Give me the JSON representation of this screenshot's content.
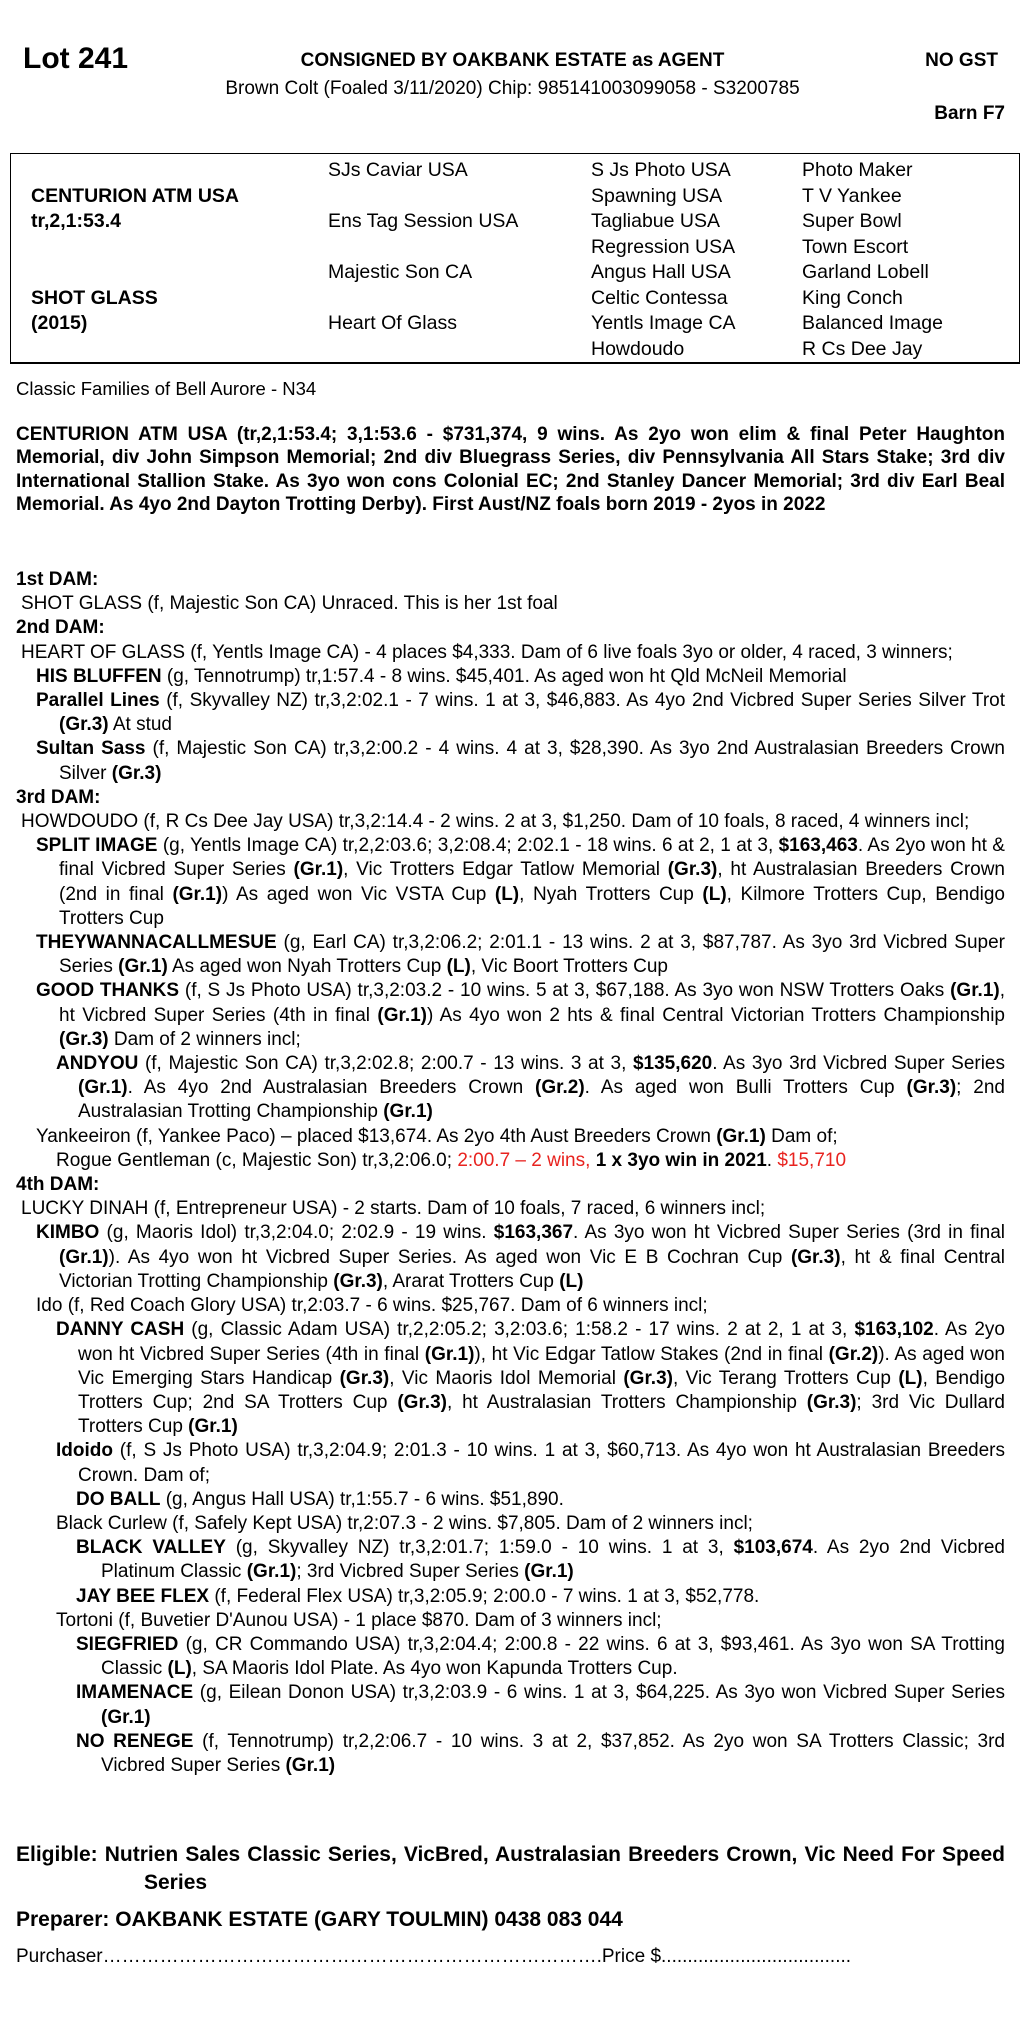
{
  "header": {
    "lot": "Lot 241",
    "consigned": "CONSIGNED BY OAKBANK ESTATE as AGENT",
    "gst": "NO GST",
    "description": "Brown Colt (Foaled 3/11/2020) Chip: 985141003099058 - S3200785",
    "barn": "Barn F7"
  },
  "pedigree": {
    "col1": [
      [
        "",
        ""
      ],
      [
        "CENTURION ATM USA",
        "b"
      ],
      [
        "tr,2,1:53.4",
        "b"
      ],
      [
        "",
        ""
      ],
      [
        "",
        ""
      ],
      [
        "SHOT GLASS",
        "b"
      ],
      [
        "(2015)",
        "b"
      ],
      [
        "",
        ""
      ]
    ],
    "col2": [
      "SJs Caviar USA",
      "",
      "Ens Tag Session USA",
      "",
      "Majestic Son CA",
      "",
      "Heart Of Glass",
      ""
    ],
    "col3": [
      "S Js Photo USA",
      "Spawning USA",
      "Tagliabue USA",
      "Regression USA",
      "Angus Hall USA",
      "Celtic Contessa",
      "Yentls Image CA",
      "Howdoudo"
    ],
    "col4": [
      "Photo Maker",
      "T V Yankee",
      "Super Bowl",
      "Town Escort",
      "Garland Lobell",
      "King Conch",
      "Balanced Image",
      "R Cs Dee Jay"
    ]
  },
  "family": "Classic Families of Bell Aurore - N34",
  "sire_note": "CENTURION ATM USA (tr,2,1:53.4; 3,1:53.6 - $731,374, 9 wins. As 2yo won elim & final Peter Haughton Memorial, div John Simpson Memorial; 2nd div Bluegrass Series, div Pennsylvania All Stars Stake; 3rd div International Stallion Stake. As 3yo won cons Colonial EC; 2nd Stanley Dancer Memorial; 3rd div Earl Beal Memorial. As 4yo 2nd Dayton Trotting Derby). First Aust/NZ foals born 2019 - 2yos in 2022",
  "dams": [
    {
      "heading": "1st DAM:",
      "entries": [
        {
          "level": 0,
          "seg": [
            [
              "SHOT GLASS (f, Majestic Son CA) Unraced. This is her 1st foal",
              ""
            ]
          ]
        }
      ]
    },
    {
      "heading": "2nd DAM:",
      "entries": [
        {
          "level": 0,
          "seg": [
            [
              "HEART OF GLASS (f, Yentls Image CA) - 4 places $4,333. Dam of 6 live foals 3yo or older, 4 raced, 3 winners;",
              ""
            ]
          ]
        },
        {
          "level": 1,
          "seg": [
            [
              "HIS BLUFFEN",
              "b"
            ],
            [
              " (g, Tennotrump) tr,1:57.4 - 8 wins. $45,401. As aged won ht Qld McNeil Memorial",
              ""
            ]
          ]
        },
        {
          "level": 1,
          "seg": [
            [
              "Parallel Lines",
              "b"
            ],
            [
              " (f, Skyvalley NZ) tr,3,2:02.1 - 7 wins. 1 at 3, $46,883. As 4yo 2nd Vicbred Super Series Silver Trot ",
              ""
            ],
            [
              "(Gr.3)",
              "b"
            ],
            [
              " At stud",
              ""
            ]
          ]
        },
        {
          "level": 1,
          "seg": [
            [
              "Sultan Sass",
              "b"
            ],
            [
              " (f, Majestic Son CA) tr,3,2:00.2 - 4 wins. 4 at 3, $28,390. As 3yo 2nd Australasian Breeders Crown Silver ",
              ""
            ],
            [
              "(Gr.3)",
              "b"
            ]
          ]
        }
      ]
    },
    {
      "heading": "3rd DAM:",
      "entries": [
        {
          "level": 0,
          "seg": [
            [
              "HOWDOUDO (f, R Cs Dee Jay USA) tr,3,2:14.4 - 2 wins. 2 at 3, $1,250. Dam of 10 foals, 8 raced, 4 winners incl;",
              ""
            ]
          ]
        },
        {
          "level": 1,
          "seg": [
            [
              "SPLIT IMAGE",
              "b"
            ],
            [
              " (g, Yentls Image CA) tr,2,2:03.6; 3,2:08.4; 2:02.1 - 18 wins. 6 at 2, 1 at 3, ",
              ""
            ],
            [
              "$163,463",
              "b"
            ],
            [
              ". As 2yo won ht & final Vicbred Super Series ",
              ""
            ],
            [
              "(Gr.1)",
              "b"
            ],
            [
              ", Vic Trotters Edgar Tatlow Memorial ",
              ""
            ],
            [
              "(Gr.3)",
              "b"
            ],
            [
              ", ht Australasian Breeders Crown (2nd in final ",
              ""
            ],
            [
              "(Gr.1)",
              "b"
            ],
            [
              ") As aged won Vic VSTA Cup ",
              ""
            ],
            [
              "(L)",
              "b"
            ],
            [
              ", Nyah Trotters Cup ",
              ""
            ],
            [
              "(L)",
              "b"
            ],
            [
              ", Kilmore Trotters Cup, Bendigo Trotters Cup",
              ""
            ]
          ]
        },
        {
          "level": 1,
          "seg": [
            [
              "THEYWANNACALLMESUE",
              "b"
            ],
            [
              " (g, Earl CA) tr,3,2:06.2; 2:01.1 - 13 wins. 2 at 3, $87,787. As 3yo 3rd Vicbred Super Series ",
              ""
            ],
            [
              "(Gr.1)",
              "b"
            ],
            [
              " As aged won Nyah Trotters Cup ",
              ""
            ],
            [
              "(L)",
              "b"
            ],
            [
              ", Vic Boort Trotters Cup",
              ""
            ]
          ]
        },
        {
          "level": 1,
          "seg": [
            [
              "GOOD THANKS",
              "b"
            ],
            [
              " (f, S Js Photo USA) tr,3,2:03.2 - 10 wins. 5 at 3, $67,188. As 3yo won NSW Trotters Oaks ",
              ""
            ],
            [
              "(Gr.1)",
              "b"
            ],
            [
              ", ht Vicbred Super Series (4th in final ",
              ""
            ],
            [
              "(Gr.1)",
              "b"
            ],
            [
              ") As 4yo won 2 hts & final Central Victorian Trotters Championship ",
              ""
            ],
            [
              "(Gr.3)",
              "b"
            ],
            [
              " Dam of 2 winners incl;",
              ""
            ]
          ]
        },
        {
          "level": 2,
          "seg": [
            [
              "ANDYOU",
              "b"
            ],
            [
              " (f, Majestic Son CA) tr,3,2:02.8; 2:00.7 - 13 wins. 3 at 3, ",
              ""
            ],
            [
              "$135,620",
              "b"
            ],
            [
              ". As 3yo 3rd Vicbred Super Series ",
              ""
            ],
            [
              "(Gr.1)",
              "b"
            ],
            [
              ". As 4yo 2nd Australasian Breeders Crown ",
              ""
            ],
            [
              "(Gr.2)",
              "b"
            ],
            [
              ". As aged won Bulli Trotters Cup ",
              ""
            ],
            [
              "(Gr.3)",
              "b"
            ],
            [
              "; 2nd Australasian Trotting Championship ",
              ""
            ],
            [
              "(Gr.1)",
              "b"
            ]
          ]
        },
        {
          "level": 1,
          "seg": [
            [
              "Yankeeiron (f, Yankee Paco) – placed $13,674. As 2yo 4th Aust Breeders Crown ",
              ""
            ],
            [
              "(Gr.1)",
              "b"
            ],
            [
              " Dam of;",
              ""
            ]
          ]
        },
        {
          "level": 2,
          "seg": [
            [
              "Rogue Gentleman (c, Majestic Son) tr,3,2:06.0; ",
              ""
            ],
            [
              "2:00.7 – 2 wins, ",
              "r"
            ],
            [
              "1 x 3yo win in 2021",
              "b"
            ],
            [
              ". ",
              ""
            ],
            [
              "$15,710",
              "r"
            ]
          ]
        }
      ]
    },
    {
      "heading": "4th DAM:",
      "entries": [
        {
          "level": 0,
          "seg": [
            [
              "LUCKY DINAH (f, Entrepreneur USA) - 2 starts. Dam of 10 foals, 7 raced, 6 winners incl;",
              ""
            ]
          ]
        },
        {
          "level": 1,
          "seg": [
            [
              "KIMBO",
              "b"
            ],
            [
              " (g, Maoris Idol) tr,3,2:04.0; 2:02.9 - 19 wins. ",
              ""
            ],
            [
              "$163,367",
              "b"
            ],
            [
              ". As 3yo won ht Vicbred Super Series (3rd in final ",
              ""
            ],
            [
              "(Gr.1)",
              "b"
            ],
            [
              "). As 4yo won ht Vicbred Super Series. As aged won Vic E B Cochran Cup ",
              ""
            ],
            [
              "(Gr.3)",
              "b"
            ],
            [
              ", ht & final Central Victorian Trotting Championship ",
              ""
            ],
            [
              "(Gr.3)",
              "b"
            ],
            [
              ", Ararat Trotters Cup ",
              ""
            ],
            [
              "(L)",
              "b"
            ]
          ]
        },
        {
          "level": 1,
          "seg": [
            [
              "Ido (f, Red Coach Glory USA) tr,2:03.7 - 6 wins. $25,767. Dam of 6 winners incl;",
              ""
            ]
          ]
        },
        {
          "level": 2,
          "seg": [
            [
              "DANNY CASH",
              "b"
            ],
            [
              " (g, Classic Adam USA) tr,2,2:05.2; 3,2:03.6; 1:58.2 - 17 wins. 2 at 2, 1 at 3, ",
              ""
            ],
            [
              "$163,102",
              "b"
            ],
            [
              ". As 2yo won ht Vicbred Super Series (4th in final ",
              ""
            ],
            [
              "(Gr.1)",
              "b"
            ],
            [
              "), ht Vic Edgar Tatlow Stakes (2nd in final ",
              ""
            ],
            [
              "(Gr.2)",
              "b"
            ],
            [
              "). As aged won Vic Emerging Stars Handicap ",
              ""
            ],
            [
              "(Gr.3)",
              "b"
            ],
            [
              ", Vic Maoris Idol Memorial ",
              ""
            ],
            [
              "(Gr.3)",
              "b"
            ],
            [
              ", Vic Terang Trotters Cup ",
              ""
            ],
            [
              "(L)",
              "b"
            ],
            [
              ", Bendigo Trotters Cup; 2nd SA Trotters Cup ",
              ""
            ],
            [
              "(Gr.3)",
              "b"
            ],
            [
              ", ht Australasian Trotters Championship ",
              ""
            ],
            [
              "(Gr.3)",
              "b"
            ],
            [
              "; 3rd Vic Dullard Trotters Cup ",
              ""
            ],
            [
              "(Gr.1)",
              "b"
            ]
          ]
        },
        {
          "level": 2,
          "seg": [
            [
              "Idoido",
              "b"
            ],
            [
              " (f, S Js Photo USA) tr,3,2:04.9; 2:01.3 - 10 wins. 1 at 3, $60,713. As 4yo won ht Australasian Breeders Crown. Dam of;",
              ""
            ]
          ]
        },
        {
          "level": 3,
          "seg": [
            [
              "DO BALL",
              "b"
            ],
            [
              " (g, Angus Hall USA) tr,1:55.7 - 6 wins. $51,890.",
              ""
            ]
          ]
        },
        {
          "level": 2,
          "seg": [
            [
              "Black Curlew (f, Safely Kept USA) tr,2:07.3 - 2 wins. $7,805. Dam of 2 winners incl;",
              ""
            ]
          ]
        },
        {
          "level": 3,
          "seg": [
            [
              "BLACK VALLEY",
              "b"
            ],
            [
              " (g, Skyvalley NZ) tr,3,2:01.7; 1:59.0 - 10 wins. 1 at 3, ",
              ""
            ],
            [
              "$103,674",
              "b"
            ],
            [
              ". As 2yo 2nd Vicbred Platinum Classic ",
              ""
            ],
            [
              "(Gr.1)",
              "b"
            ],
            [
              "; 3rd Vicbred Super Series ",
              ""
            ],
            [
              "(Gr.1)",
              "b"
            ]
          ]
        },
        {
          "level": 3,
          "seg": [
            [
              "JAY BEE FLEX",
              "b"
            ],
            [
              " (f, Federal Flex USA) tr,3,2:05.9; 2:00.0 - 7 wins. 1 at 3, $52,778.",
              ""
            ]
          ]
        },
        {
          "level": 2,
          "seg": [
            [
              "Tortoni (f, Buvetier D'Aunou USA) - 1 place $870. Dam of 3 winners incl;",
              ""
            ]
          ]
        },
        {
          "level": 3,
          "seg": [
            [
              "SIEGFRIED",
              "b"
            ],
            [
              " (g, CR Commando USA) tr,3,2:04.4; 2:00.8 - 22 wins. 6 at 3, $93,461. As 3yo won SA Trotting Classic ",
              ""
            ],
            [
              "(L)",
              "b"
            ],
            [
              ", SA Maoris Idol Plate. As 4yo won Kapunda Trotters Cup.",
              ""
            ]
          ]
        },
        {
          "level": 3,
          "seg": [
            [
              "IMAMENACE",
              "b"
            ],
            [
              " (g, Eilean Donon USA) tr,3,2:03.9 - 6 wins. 1 at 3, $64,225. As 3yo won Vicbred Super Series ",
              ""
            ],
            [
              "(Gr.1)",
              "b"
            ]
          ]
        },
        {
          "level": 3,
          "seg": [
            [
              "NO RENEGE",
              "b"
            ],
            [
              " (f, Tennotrump) tr,2,2:06.7 - 10 wins. 3 at 2, $37,852. As 2yo won SA Trotters Classic; 3rd Vicbred Super Series ",
              ""
            ],
            [
              "(Gr.1)",
              "b"
            ]
          ]
        }
      ]
    }
  ],
  "eligible": "Eligible: Nutrien Sales Classic Series, VicBred, Australasian Breeders Crown, Vic Need For Speed Series",
  "preparer": "Preparer: OAKBANK ESTATE (GARY TOULMIN) 0438 083 044",
  "purchaser_line": "Purchaser…………………………………………………………………….Price $....................................",
  "colors": {
    "text": "#000000",
    "highlight": "#e8231f"
  }
}
